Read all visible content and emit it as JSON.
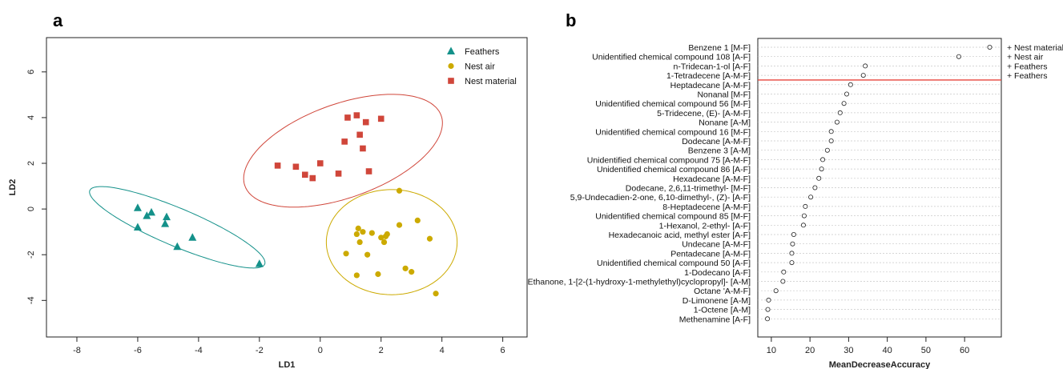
{
  "panels": {
    "a": "a",
    "b": "b"
  },
  "chart_data": [
    {
      "type": "scatter",
      "title": "",
      "xlabel": "LD1",
      "ylabel": "LD2",
      "xlim": [
        -9,
        6.8
      ],
      "ylim": [
        -5.6,
        7.5
      ],
      "xticks": [
        "-8",
        "-6",
        "-4",
        "-2",
        "0",
        "2",
        "4",
        "6"
      ],
      "yticks": [
        "-4",
        "-2",
        "0",
        "2",
        "4",
        "6"
      ],
      "legend_position": "top-right",
      "series": [
        {
          "name": "Feathers",
          "marker": "triangle",
          "color": "#14918A",
          "points": [
            [
              -6,
              0.05
            ],
            [
              -5.7,
              -0.3
            ],
            [
              -5.55,
              -0.15
            ],
            [
              -5.05,
              -0.35
            ],
            [
              -5.1,
              -0.65
            ],
            [
              -6,
              -0.8
            ],
            [
              -4.7,
              -1.65
            ],
            [
              -4.2,
              -1.25
            ],
            [
              -2,
              -2.4
            ]
          ],
          "ellipse": {
            "cx": -4.7,
            "cy": -0.8,
            "rx": 3.3,
            "ry": 0.78,
            "angle": -30
          }
        },
        {
          "name": "Nest air",
          "marker": "circle",
          "color": "#CCAA00",
          "points": [
            [
              2.6,
              0.8
            ],
            [
              2.6,
              -0.7
            ],
            [
              3.2,
              -0.5
            ],
            [
              1.25,
              -0.85
            ],
            [
              1.4,
              -1
            ],
            [
              1.2,
              -1.1
            ],
            [
              1.7,
              -1.05
            ],
            [
              2,
              -1.25
            ],
            [
              2.2,
              -1.1
            ],
            [
              2.15,
              -1.2
            ],
            [
              2.1,
              -1.45
            ],
            [
              1.3,
              -1.45
            ],
            [
              0.85,
              -1.95
            ],
            [
              1.55,
              -2
            ],
            [
              3.6,
              -1.3
            ],
            [
              1.2,
              -2.9
            ],
            [
              1.9,
              -2.85
            ],
            [
              2.8,
              -2.6
            ],
            [
              3,
              -2.75
            ],
            [
              3.8,
              -3.7
            ]
          ],
          "ellipse": {
            "cx": 2.35,
            "cy": -1.45,
            "rx": 2.15,
            "ry": 2.3,
            "angle": 0
          }
        },
        {
          "name": "Nest material",
          "marker": "square",
          "color": "#D0463A",
          "points": [
            [
              1.2,
              4.1
            ],
            [
              0.9,
              4
            ],
            [
              2,
              3.95
            ],
            [
              1.5,
              3.8
            ],
            [
              1.3,
              3.25
            ],
            [
              0.8,
              2.95
            ],
            [
              1.4,
              2.65
            ],
            [
              -1.4,
              1.9
            ],
            [
              -0.8,
              1.85
            ],
            [
              0,
              2
            ],
            [
              1.6,
              1.65
            ],
            [
              0.6,
              1.55
            ],
            [
              -0.5,
              1.5
            ],
            [
              -0.25,
              1.35
            ]
          ],
          "ellipse": {
            "cx": 0.75,
            "cy": 2.55,
            "rx": 3.6,
            "ry": 1.95,
            "angle": 30
          }
        }
      ]
    },
    {
      "type": "scatter",
      "title": "",
      "xlabel": "MeanDecreaseAccuracy",
      "xlim": [
        6.5,
        69.5
      ],
      "xticks": [
        "10",
        "20",
        "30",
        "40",
        "50",
        "60"
      ],
      "categories": [
        "Benzene 1 [M-F]",
        "Unidentified chemical compound 108 [A-F]",
        "n-Tridecan-1-ol [A-F]",
        "1-Tetradecene [A-M-F]",
        "Heptadecane [A-M-F]",
        "Nonanal [M-F]",
        "Unidentified chemical compound 56 [M-F]",
        "5-Tridecene, (E)- [A-M-F]",
        "Nonane [A-M]",
        "Unidentified chemical compound 16 [M-F]",
        "Dodecane [A-M-F]",
        "Benzene 3 [A-M]",
        "Unidentified chemical compound 75 [A-M-F]",
        "Unidentified chemical compound 86 [A-F]",
        "Hexadecane [A-M-F]",
        "Dodecane, 2,6,11-trimethyl- [M-F]",
        "5,9-Undecadien-2-one, 6,10-dimethyl-, (Z)- [A-F]",
        "8-Heptadecene [A-M-F]",
        "Unidentified chemical compound 85 [M-F]",
        "1-Hexanol, 2-ethyl- [A-F]",
        "Hexadecanoic acid, methyl ester [A-F]",
        "Undecane [A-M-F]",
        "Pentadecane [A-M-F]",
        "Unidentified chemical compound 50 [A-F]",
        "1-Dodecano [A-F]",
        "Ethanone, 1-[2-(1-hydroxy-1-methylethyl)cyclopropyl]- [A-M]",
        "Octane 'A-M-F]",
        "D-Limonene [A-M]",
        "1-Octene [A-M]",
        "Methenamine [A-F]"
      ],
      "values": [
        66.5,
        58.5,
        34.3,
        33.8,
        30.5,
        29.5,
        28.8,
        27.8,
        27,
        25.5,
        25.5,
        24.5,
        23.3,
        23,
        22.3,
        21.3,
        20.2,
        18.8,
        18.5,
        18.3,
        15.8,
        15.5,
        15.3,
        15.3,
        13.2,
        13,
        11.2,
        9.3,
        9.1,
        9
      ],
      "threshold_after_index": 3,
      "threshold_color": "#E8453C",
      "annotations": [
        "+ Nest material",
        "+ Nest air",
        "+ Feathers",
        "+ Feathers"
      ]
    }
  ]
}
